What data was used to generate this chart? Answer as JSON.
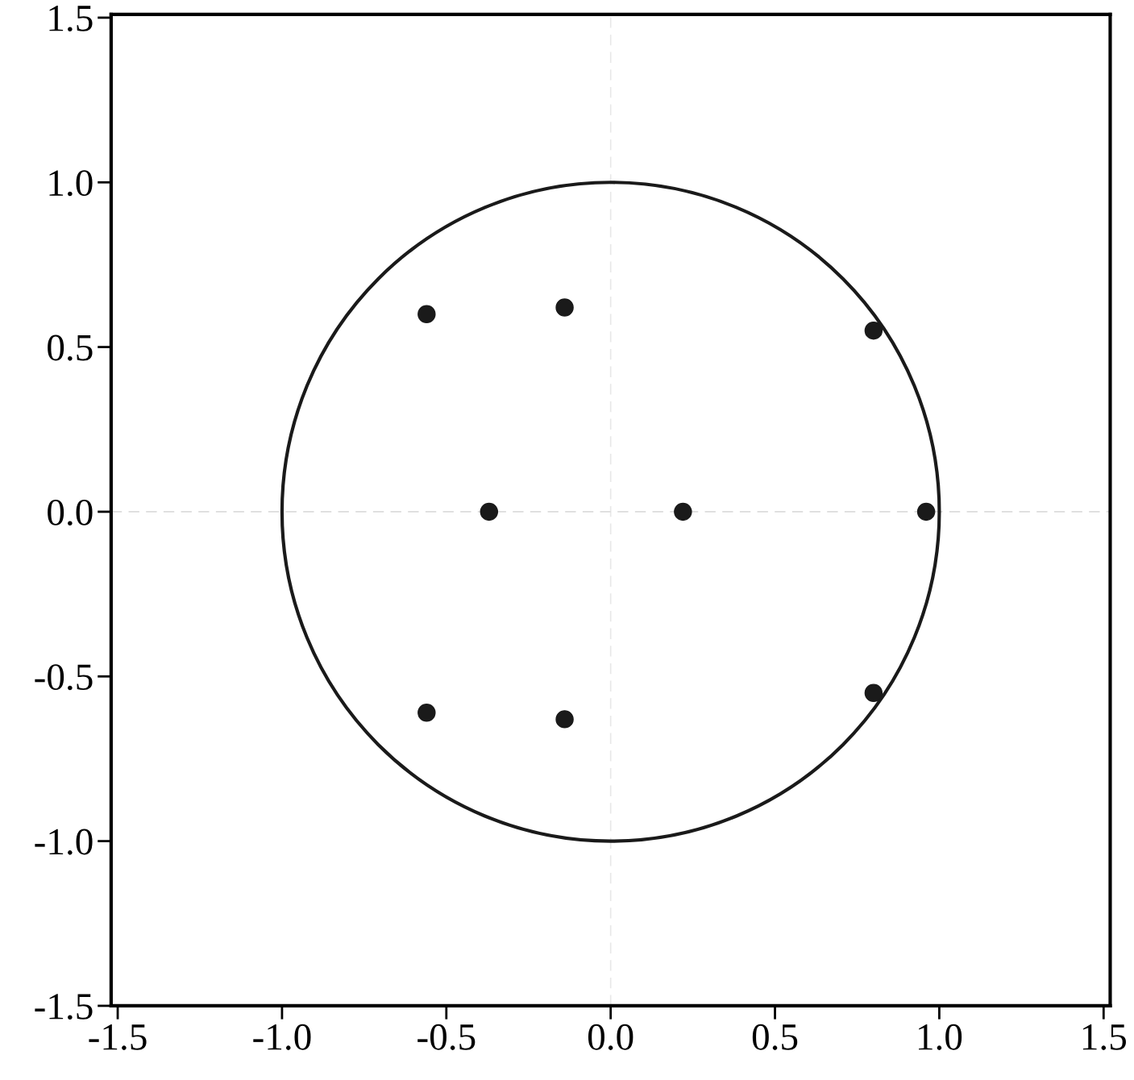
{
  "chart_data": {
    "type": "scatter",
    "xlim": [
      -1.52,
      1.52
    ],
    "ylim": [
      -1.5,
      1.51
    ],
    "xticks": [
      {
        "value": -1.5,
        "label": "-1.5"
      },
      {
        "value": -1.0,
        "label": "-1.0"
      },
      {
        "value": -0.5,
        "label": "-0.5"
      },
      {
        "value": 0.0,
        "label": "0.0"
      },
      {
        "value": 0.5,
        "label": "0.5"
      },
      {
        "value": 1.0,
        "label": "1.0"
      },
      {
        "value": 1.5,
        "label": "1.5"
      }
    ],
    "yticks": [
      {
        "value": -1.5,
        "label": "-1.5"
      },
      {
        "value": -1.0,
        "label": "-1.0"
      },
      {
        "value": -0.5,
        "label": "-0.5"
      },
      {
        "value": 0.0,
        "label": "0.0"
      },
      {
        "value": 0.5,
        "label": "0.5"
      },
      {
        "value": 1.0,
        "label": "1.0"
      },
      {
        "value": 1.5,
        "label": "1.5"
      }
    ],
    "grid": false,
    "legend": false,
    "ref_lines": [
      {
        "axis": "x",
        "value": 0.0,
        "color": "#e8e8e8",
        "line_style": "dashed"
      },
      {
        "axis": "y",
        "value": 0.0,
        "color": "#dcdcdc",
        "line_style": "dashed"
      }
    ],
    "series": [
      {
        "color": "#1a1a1a",
        "marker": "circle",
        "x": [
          -0.56,
          -0.14,
          0.8,
          -0.37,
          0.22,
          0.96,
          -0.56,
          -0.14,
          0.8
        ],
        "values": [
          0.6,
          0.62,
          0.55,
          0.0,
          0.0,
          0.0,
          -0.61,
          -0.63,
          -0.55
        ]
      }
    ]
  }
}
